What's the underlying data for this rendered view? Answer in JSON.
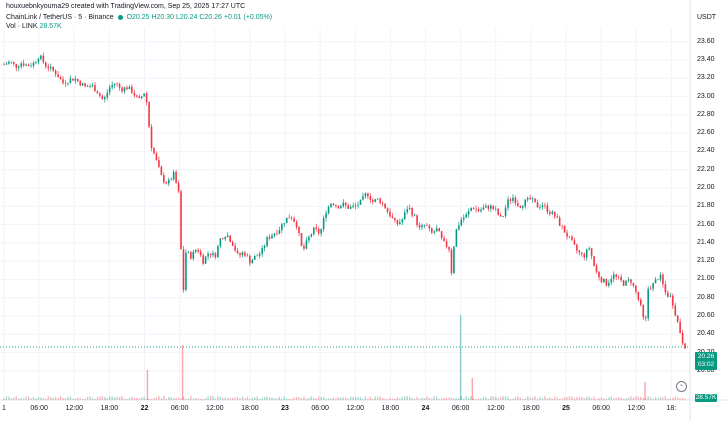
{
  "header": {
    "creator_line": "houxuebnkyouma29 created with TradingView.com, Sep 25, 2025 17:27 UTC",
    "symbol_line": "ChainLink / TetherUS · 5 · Binance",
    "ohlc": "O20.25 H20.30 L20.24 C20.26 +0.01 (+0.05%)",
    "volume_label": "Vol · LINK",
    "volume_value": "28.57K"
  },
  "axis": {
    "currency": "USDT",
    "price_tag": "20.26",
    "price_tag_time": "03:02",
    "volume_tag": "28.57K"
  },
  "colors": {
    "up": "#089981",
    "down": "#f23645"
  },
  "chart_data": {
    "type": "candlestick",
    "title": "ChainLink / TetherUS · 5 · Binance",
    "ylim": [
      19.9,
      23.75
    ],
    "yticks": [
      20.0,
      20.2,
      20.4,
      20.6,
      20.8,
      21.0,
      21.2,
      21.4,
      21.6,
      21.8,
      22.0,
      22.2,
      22.4,
      22.6,
      22.8,
      23.0,
      23.2,
      23.4,
      23.6
    ],
    "ytick_labels": [
      "20.00",
      "20.20",
      "20.40",
      "20.60",
      "20.80",
      "21.00",
      "21.20",
      "21.40",
      "21.60",
      "21.80",
      "22.00",
      "22.20",
      "22.40",
      "22.60",
      "22.80",
      "23.00",
      "23.20",
      "23.40",
      "23.60"
    ],
    "xticks": [
      {
        "label": "1",
        "t": 0,
        "bold": false
      },
      {
        "label": "06:00",
        "t": 6,
        "bold": false
      },
      {
        "label": "12:00",
        "t": 12,
        "bold": false
      },
      {
        "label": "18:00",
        "t": 18,
        "bold": false
      },
      {
        "label": "22",
        "t": 24,
        "bold": true
      },
      {
        "label": "06:00",
        "t": 30,
        "bold": false
      },
      {
        "label": "12:00",
        "t": 36,
        "bold": false
      },
      {
        "label": "18:00",
        "t": 42,
        "bold": false
      },
      {
        "label": "23",
        "t": 48,
        "bold": true
      },
      {
        "label": "06:00",
        "t": 54,
        "bold": false
      },
      {
        "label": "12:00",
        "t": 60,
        "bold": false
      },
      {
        "label": "18:00",
        "t": 66,
        "bold": false
      },
      {
        "label": "24",
        "t": 72,
        "bold": true
      },
      {
        "label": "06:00",
        "t": 78,
        "bold": false
      },
      {
        "label": "12:00",
        "t": 84,
        "bold": false
      },
      {
        "label": "18:00",
        "t": 90,
        "bold": false
      },
      {
        "label": "25",
        "t": 96,
        "bold": true
      },
      {
        "label": "06:00",
        "t": 102,
        "bold": false
      },
      {
        "label": "12:00",
        "t": 108,
        "bold": false
      },
      {
        "label": "18:",
        "t": 114,
        "bold": false
      }
    ],
    "price_path": [
      [
        0,
        23.35
      ],
      [
        1,
        23.38
      ],
      [
        2,
        23.33
      ],
      [
        3,
        23.37
      ],
      [
        4,
        23.34
      ],
      [
        5,
        23.36
      ],
      [
        6,
        23.45
      ],
      [
        7,
        23.35
      ],
      [
        8,
        23.3
      ],
      [
        9,
        23.25
      ],
      [
        10,
        23.15
      ],
      [
        11,
        23.18
      ],
      [
        12,
        23.2
      ],
      [
        13,
        23.15
      ],
      [
        14,
        23.1
      ],
      [
        15,
        23.12
      ],
      [
        16,
        23.05
      ],
      [
        17,
        22.95
      ],
      [
        18,
        23.1
      ],
      [
        19,
        23.15
      ],
      [
        20,
        23.08
      ],
      [
        21,
        23.1
      ],
      [
        22,
        23.05
      ],
      [
        23,
        22.95
      ],
      [
        24,
        23.05
      ],
      [
        24.5,
        22.9
      ],
      [
        25,
        22.5
      ],
      [
        26,
        22.3
      ],
      [
        27,
        22.1
      ],
      [
        28,
        22.05
      ],
      [
        29,
        22.15
      ],
      [
        30,
        21.9
      ],
      [
        30.5,
        20.7
      ],
      [
        31,
        21.3
      ],
      [
        32,
        21.25
      ],
      [
        33,
        21.35
      ],
      [
        34,
        21.2
      ],
      [
        35,
        21.3
      ],
      [
        36,
        21.25
      ],
      [
        37,
        21.45
      ],
      [
        38,
        21.5
      ],
      [
        39,
        21.4
      ],
      [
        40,
        21.25
      ],
      [
        41,
        21.3
      ],
      [
        42,
        21.2
      ],
      [
        43,
        21.25
      ],
      [
        44,
        21.3
      ],
      [
        45,
        21.45
      ],
      [
        46,
        21.5
      ],
      [
        47,
        21.55
      ],
      [
        48,
        21.65
      ],
      [
        49,
        21.7
      ],
      [
        50,
        21.6
      ],
      [
        51,
        21.3
      ],
      [
        52,
        21.45
      ],
      [
        53,
        21.55
      ],
      [
        54,
        21.5
      ],
      [
        55,
        21.75
      ],
      [
        56,
        21.85
      ],
      [
        57,
        21.8
      ],
      [
        58,
        21.82
      ],
      [
        59,
        21.78
      ],
      [
        60,
        21.8
      ],
      [
        61,
        21.85
      ],
      [
        62,
        21.95
      ],
      [
        63,
        21.85
      ],
      [
        64,
        21.88
      ],
      [
        65,
        21.8
      ],
      [
        66,
        21.7
      ],
      [
        67,
        21.6
      ],
      [
        68,
        21.65
      ],
      [
        69,
        21.8
      ],
      [
        70,
        21.7
      ],
      [
        71,
        21.55
      ],
      [
        72,
        21.6
      ],
      [
        73,
        21.5
      ],
      [
        74,
        21.55
      ],
      [
        75,
        21.4
      ],
      [
        76,
        21.35
      ],
      [
        76.5,
        21.05
      ],
      [
        77,
        21.5
      ],
      [
        78,
        21.65
      ],
      [
        79,
        21.7
      ],
      [
        80,
        21.8
      ],
      [
        81,
        21.75
      ],
      [
        82,
        21.78
      ],
      [
        83,
        21.8
      ],
      [
        84,
        21.75
      ],
      [
        85,
        21.65
      ],
      [
        86,
        21.85
      ],
      [
        87,
        21.9
      ],
      [
        88,
        21.8
      ],
      [
        89,
        21.85
      ],
      [
        90,
        21.88
      ],
      [
        91,
        21.8
      ],
      [
        92,
        21.82
      ],
      [
        93,
        21.75
      ],
      [
        94,
        21.7
      ],
      [
        95,
        21.6
      ],
      [
        96,
        21.5
      ],
      [
        97,
        21.4
      ],
      [
        98,
        21.3
      ],
      [
        99,
        21.25
      ],
      [
        100,
        21.35
      ],
      [
        101,
        21.1
      ],
      [
        102,
        21.0
      ],
      [
        103,
        20.95
      ],
      [
        104,
        21.05
      ],
      [
        105,
        21.0
      ],
      [
        106,
        20.95
      ],
      [
        107,
        21.0
      ],
      [
        108,
        20.85
      ],
      [
        109,
        20.65
      ],
      [
        109.5,
        20.45
      ],
      [
        110,
        20.9
      ],
      [
        111,
        20.95
      ],
      [
        112,
        21.05
      ],
      [
        113,
        20.85
      ],
      [
        114,
        20.8
      ],
      [
        115,
        20.55
      ],
      [
        116,
        20.3
      ],
      [
        116.5,
        20.26
      ]
    ],
    "volume_spikes": [
      [
        24.5,
        0.3
      ],
      [
        30.5,
        0.55
      ],
      [
        78,
        0.85
      ],
      [
        80,
        0.22
      ],
      [
        109.5,
        0.18
      ]
    ]
  }
}
